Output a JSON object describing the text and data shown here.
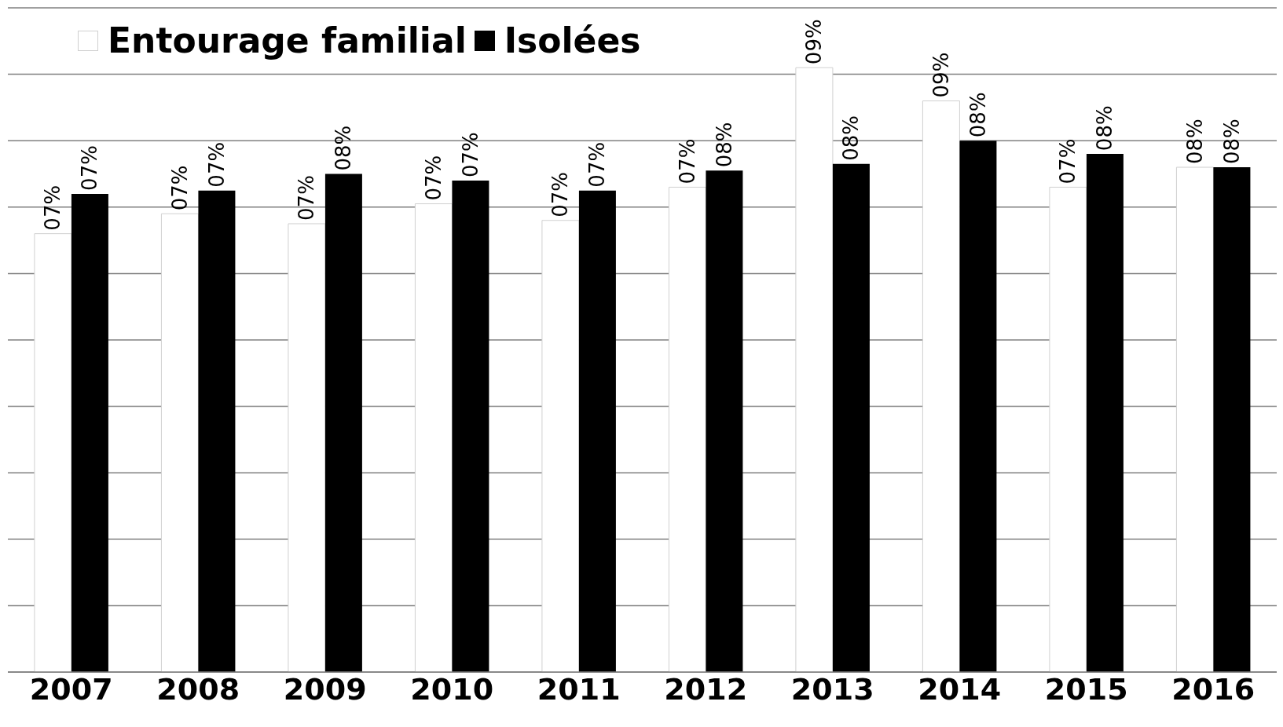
{
  "chart_data": {
    "type": "bar",
    "categories": [
      "2007",
      "2008",
      "2009",
      "2010",
      "2011",
      "2012",
      "2013",
      "2014",
      "2015",
      "2016"
    ],
    "series": [
      {
        "name": "Entourage familial",
        "color": "#ffffff",
        "values": [
          6.6,
          6.9,
          6.75,
          7.05,
          6.8,
          7.3,
          9.1,
          8.6,
          7.3,
          7.6
        ],
        "value_labels": [
          "07%",
          "07%",
          "07%",
          "07%",
          "07%",
          "07%",
          "09%",
          "09%",
          "07%",
          "08%"
        ]
      },
      {
        "name": "Isolées",
        "color": "#000000",
        "values": [
          7.2,
          7.25,
          7.5,
          7.4,
          7.25,
          7.55,
          7.65,
          8.0,
          7.8,
          7.6
        ],
        "value_labels": [
          "07%",
          "07%",
          "08%",
          "07%",
          "07%",
          "08%",
          "08%",
          "08%",
          "08%",
          "08%"
        ]
      }
    ],
    "ylim": [
      0,
      10
    ],
    "yticks": [
      {
        "value": 0,
        "label": null
      },
      {
        "value": 1,
        "label": null
      },
      {
        "value": 2,
        "label": null
      },
      {
        "value": 3,
        "label": null
      },
      {
        "value": 4,
        "label": null
      },
      {
        "value": 5,
        "label": null
      },
      {
        "value": 6,
        "label": null
      },
      {
        "value": 7,
        "label": null
      },
      {
        "value": 8,
        "label": null
      },
      {
        "value": 9,
        "label": null
      },
      {
        "value": 10,
        "label": null
      }
    ],
    "tick_labels": "x",
    "grid": "y",
    "legend": "top left"
  }
}
